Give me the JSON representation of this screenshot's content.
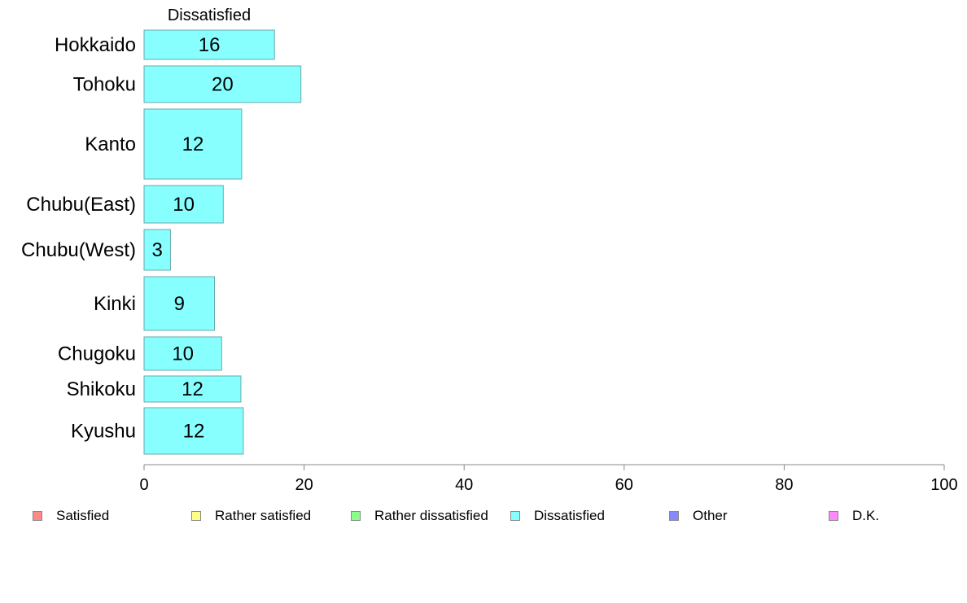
{
  "chart_data": {
    "type": "bar",
    "orientation": "horizontal",
    "title": "Dissatisfied",
    "categories": [
      "Hokkaido",
      "Tohoku",
      "Kanto",
      "Chubu(East)",
      "Chubu(West)",
      "Kinki",
      "Chugoku",
      "Shikoku",
      "Kyushu"
    ],
    "values": [
      16.3,
      19.6,
      12.2,
      9.9,
      3.3,
      8.8,
      9.7,
      12.1,
      12.4
    ],
    "value_labels": [
      "16",
      "20",
      "12",
      "10",
      "3",
      "9",
      "10",
      "12",
      "12"
    ],
    "xlim": [
      0,
      100
    ],
    "xticks": [
      0,
      20,
      40,
      60,
      80,
      100
    ],
    "xtick_labels": [
      "0",
      "20",
      "40",
      "60",
      "80",
      "100"
    ],
    "grid": false,
    "bar_color": "#88ffff",
    "legend_placement": "bottom",
    "legend": [
      {
        "label": "Satisfied",
        "color": "#ff8888"
      },
      {
        "label": "Rather satisfied",
        "color": "#ffff88"
      },
      {
        "label": "Rather dissatisfied",
        "color": "#88ff88"
      },
      {
        "label": "Dissatisfied",
        "color": "#88ffff"
      },
      {
        "label": "Other",
        "color": "#8888ff"
      },
      {
        "label": "D.K.",
        "color": "#ff88ff"
      }
    ]
  }
}
